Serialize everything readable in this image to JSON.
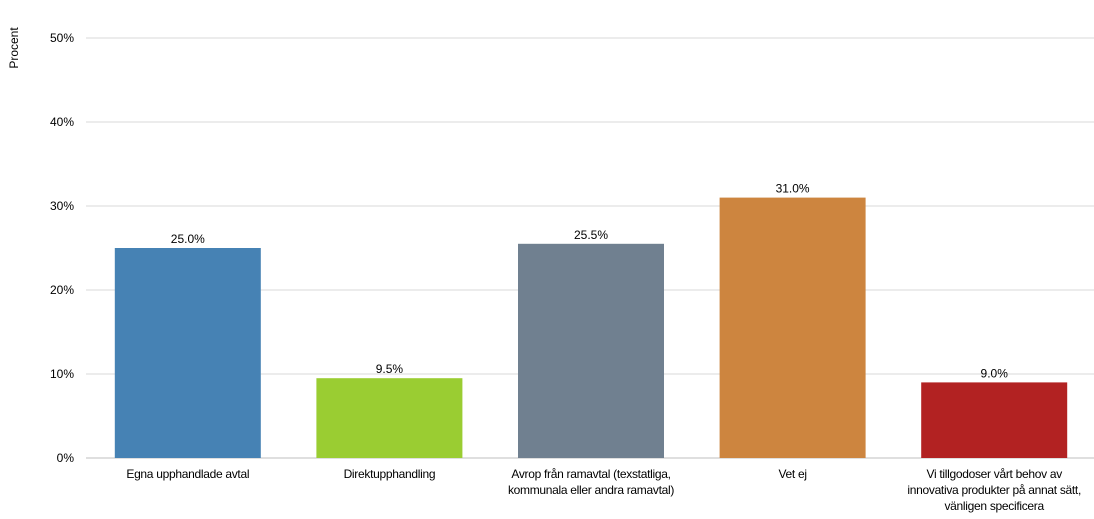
{
  "chart_data": {
    "type": "bar",
    "ylabel": "Procent",
    "ylim": [
      0,
      50
    ],
    "yticks": [
      "0%",
      "10%",
      "20%",
      "30%",
      "40%",
      "50%"
    ],
    "grid": true,
    "categories": [
      [
        "Egna upphandlade avtal"
      ],
      [
        "Direktupphandling"
      ],
      [
        "Avrop från ramavtal (texstatliga,",
        "kommunala eller andra ramavtal)"
      ],
      [
        "Vet ej"
      ],
      [
        "Vi tillgodoser vårt behov av",
        "innovativa produkter på annat sätt,",
        "vänligen specificera"
      ]
    ],
    "values": [
      25.0,
      9.5,
      25.5,
      31.0,
      9.0
    ],
    "data_labels": [
      "25.0%",
      "9.5%",
      "25.5%",
      "31.0%",
      "9.0%"
    ],
    "colors": [
      "#4682b4",
      "#9acd32",
      "#708090",
      "#cd853f",
      "#b22222"
    ]
  }
}
